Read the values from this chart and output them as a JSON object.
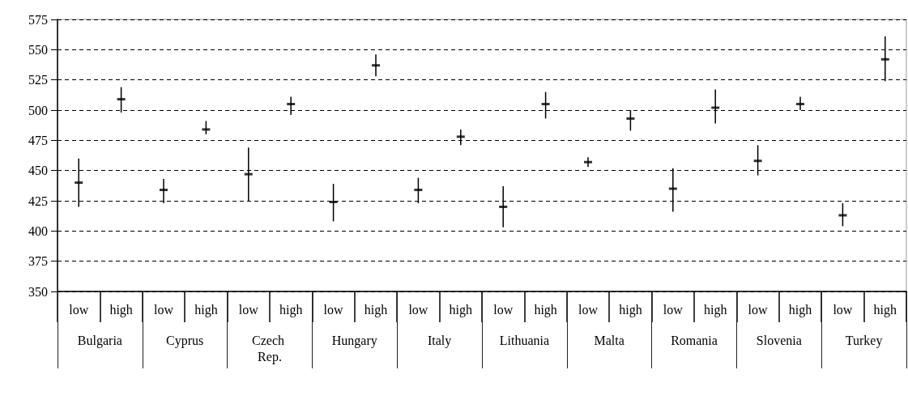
{
  "chart_data": {
    "type": "scatter",
    "categories": [
      "low",
      "high",
      "low",
      "high",
      "low",
      "high",
      "low",
      "high",
      "low",
      "high",
      "low",
      "high",
      "low",
      "high",
      "low",
      "high",
      "low",
      "high",
      "low",
      "high"
    ],
    "values": [
      440,
      509,
      434,
      484,
      447,
      505,
      424,
      537,
      434,
      478,
      420,
      505,
      457,
      493,
      435,
      502,
      458,
      505,
      413,
      542
    ],
    "errors": [
      [
        420,
        460
      ],
      [
        498,
        519
      ],
      [
        423,
        443
      ],
      [
        480,
        491
      ],
      [
        425,
        469
      ],
      [
        496,
        511
      ],
      [
        408,
        439
      ],
      [
        528,
        546
      ],
      [
        423,
        444
      ],
      [
        471,
        484
      ],
      [
        403,
        437
      ],
      [
        493,
        515
      ],
      [
        453,
        461
      ],
      [
        483,
        500
      ],
      [
        416,
        452
      ],
      [
        489,
        517
      ],
      [
        446,
        471
      ],
      [
        500,
        511
      ],
      [
        404,
        423
      ],
      [
        524,
        561
      ]
    ],
    "color": "#000000",
    "annotations": [
      "Bulgaria",
      "Cyprus",
      "Czech Rep.",
      "Hungary",
      "Italy",
      "Lithuania",
      "Malta",
      "Romania",
      "Slovenia",
      "Turkey"
    ],
    "ylim": [
      350,
      575
    ],
    "yticks": [
      350,
      375,
      400,
      425,
      450,
      475,
      500,
      525,
      550,
      575
    ],
    "grid": "y"
  }
}
